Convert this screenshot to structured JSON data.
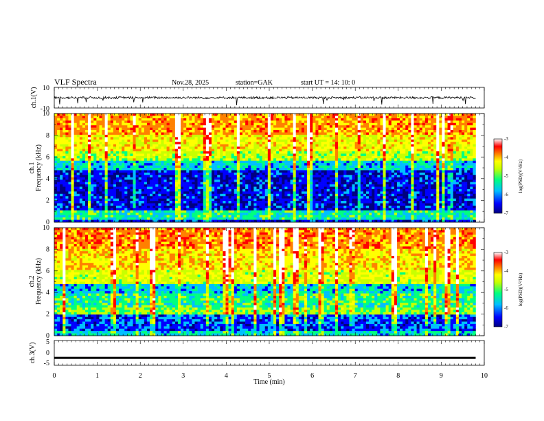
{
  "header": {
    "title": "VLF  Spectra",
    "date": "Nov.28, 2025",
    "station": "station=GAK",
    "start_ut": "start  UT  =    14: 10: 0"
  },
  "colors": {
    "spectrogram_colormap": [
      "#000080",
      "#0000ff",
      "#00bfff",
      "#00ff80",
      "#c8ff00",
      "#ffff00",
      "#ff8000",
      "#ff0000",
      "#ffffff"
    ],
    "waveform_color": "#000000",
    "frame_color": "#000000"
  },
  "chart_data": [
    {
      "type": "line",
      "name": "ch1-waveform",
      "ylabel": "ch.1(V)",
      "ylim": [
        -10,
        10
      ],
      "y_ticks": [
        "10",
        "-10"
      ],
      "x_range": [
        0,
        10
      ],
      "baseline": 0,
      "amplitude_approx": 3
    },
    {
      "type": "heatmap",
      "name": "ch1-spectrogram",
      "ylabel_channel": "ch.1",
      "ylabel": "Frequency  (kHz)",
      "ylim": [
        0,
        10
      ],
      "y_ticks": [
        "0",
        "2",
        "4",
        "6",
        "8",
        "10"
      ],
      "x_range": [
        0,
        9.8
      ],
      "bands_khz": [
        {
          "from": 0,
          "to": 0.3,
          "level": -6.6
        },
        {
          "from": 0.3,
          "to": 1.1,
          "level": -5.6
        },
        {
          "from": 1.1,
          "to": 4.8,
          "level": -6.6
        },
        {
          "from": 4.8,
          "to": 5.6,
          "level": -5.9
        },
        {
          "from": 5.6,
          "to": 6.6,
          "level": -5.0
        },
        {
          "from": 6.6,
          "to": 8.0,
          "level": -4.6
        },
        {
          "from": 8.0,
          "to": 10,
          "level": -4.1
        }
      ],
      "colorbar": {
        "label": "log(PSD)(V²/Hz)",
        "range": [
          -7,
          -3
        ],
        "ticks": [
          "-3",
          "-4",
          "-5",
          "-6",
          "-7"
        ]
      }
    },
    {
      "type": "heatmap",
      "name": "ch2-spectrogram",
      "ylabel_channel": "ch.2",
      "ylabel": "Frequency  (kHz)",
      "ylim": [
        0,
        10
      ],
      "y_ticks": [
        "0",
        "2",
        "4",
        "6",
        "8",
        "10"
      ],
      "x_range": [
        0,
        9.8
      ],
      "bands_khz": [
        {
          "from": 0,
          "to": 0.5,
          "level": -5.8
        },
        {
          "from": 0.5,
          "to": 2.0,
          "level": -6.4
        },
        {
          "from": 2.0,
          "to": 2.6,
          "level": -5.2
        },
        {
          "from": 2.6,
          "to": 4.0,
          "level": -5.5
        },
        {
          "from": 4.0,
          "to": 4.8,
          "level": -5.9
        },
        {
          "from": 4.8,
          "to": 6.0,
          "level": -4.8
        },
        {
          "from": 6.0,
          "to": 8.0,
          "level": -4.4
        },
        {
          "from": 8.0,
          "to": 10,
          "level": -4.0
        }
      ],
      "colorbar": {
        "label": "log(PSD)(V²/Hz)",
        "range": [
          -7,
          -3
        ],
        "ticks": [
          "-3",
          "-4",
          "-5",
          "-6",
          "-7"
        ]
      }
    },
    {
      "type": "line",
      "name": "ch3-waveform",
      "ylabel": "ch.3(V)",
      "ylim": [
        -5,
        5
      ],
      "y_ticks": [
        "5",
        "0",
        "-5"
      ],
      "x_range": [
        0,
        9.8
      ],
      "baseline": -2
    }
  ],
  "x_axis": {
    "label": "Time  (min)",
    "ticks": [
      "0",
      "1",
      "2",
      "3",
      "4",
      "5",
      "6",
      "7",
      "8",
      "9",
      "10"
    ],
    "range": [
      0,
      10
    ]
  }
}
